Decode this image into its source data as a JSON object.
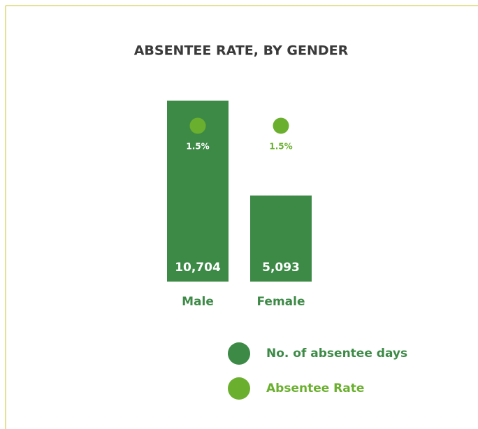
{
  "chart_data": {
    "type": "bar",
    "title": "ABSENTEE RATE, BY GENDER",
    "categories": [
      "Male",
      "Female"
    ],
    "series": [
      {
        "name": "No. of absentee days",
        "color": "#3d8a47",
        "values": [
          10704,
          5093
        ],
        "value_labels": [
          "10,704",
          "5,093"
        ]
      },
      {
        "name": "Absentee Rate",
        "color": "#6aaf2e",
        "values": [
          1.5,
          1.5
        ],
        "value_labels": [
          "1.5%",
          "1.5%"
        ]
      }
    ]
  }
}
